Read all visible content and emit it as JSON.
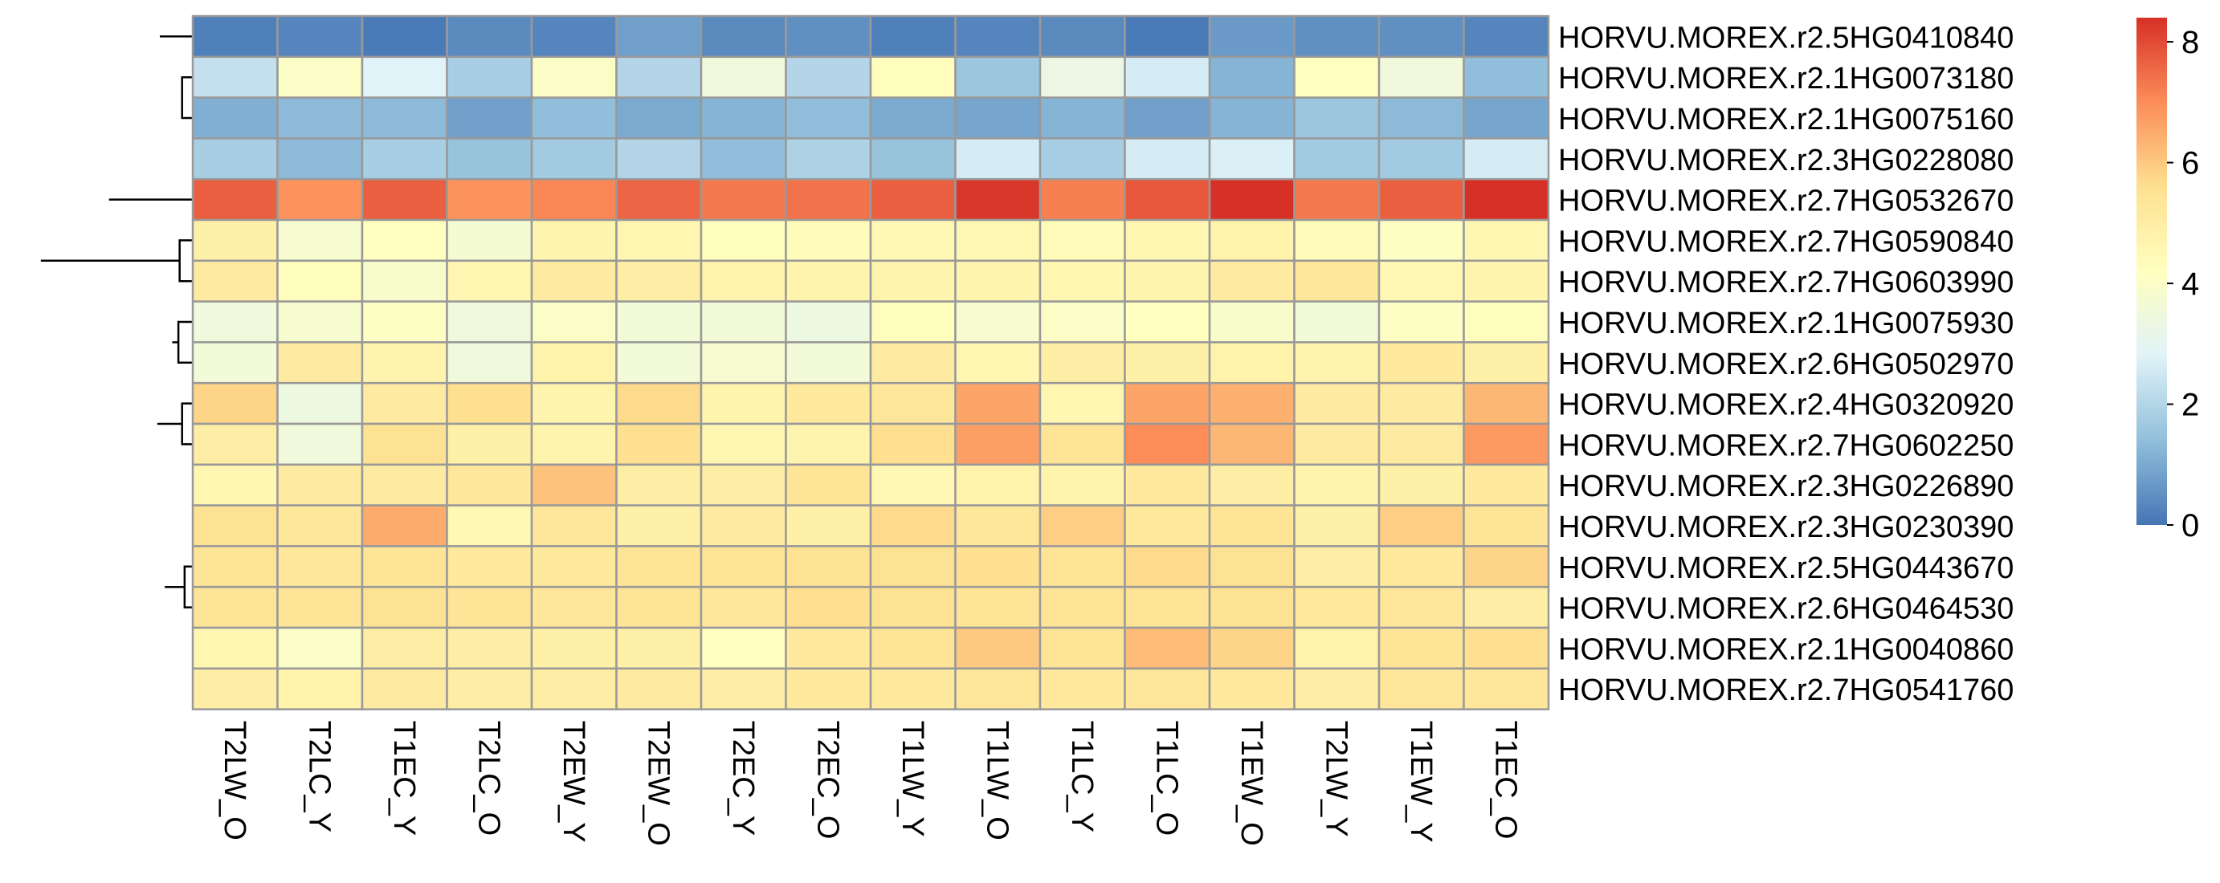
{
  "chart_data": {
    "type": "heatmap",
    "title": "",
    "rows": [
      "HORVU.MOREX.r2.5HG0410840",
      "HORVU.MOREX.r2.1HG0073180",
      "HORVU.MOREX.r2.1HG0075160",
      "HORVU.MOREX.r2.3HG0228080",
      "HORVU.MOREX.r2.7HG0532670",
      "HORVU.MOREX.r2.7HG0590840",
      "HORVU.MOREX.r2.7HG0603990",
      "HORVU.MOREX.r2.1HG0075930",
      "HORVU.MOREX.r2.6HG0502970",
      "HORVU.MOREX.r2.4HG0320920",
      "HORVU.MOREX.r2.7HG0602250",
      "HORVU.MOREX.r2.3HG0226890",
      "HORVU.MOREX.r2.3HG0230390",
      "HORVU.MOREX.r2.5HG0443670",
      "HORVU.MOREX.r2.6HG0464530",
      "HORVU.MOREX.r2.1HG0040860",
      "HORVU.MOREX.r2.7HG0541760"
    ],
    "columns": [
      "T2LW_O",
      "T2LC_Y",
      "T1EC_Y",
      "T2LC_O",
      "T2EW_Y",
      "T2EW_O",
      "T2EC_Y",
      "T2EC_O",
      "T1LW_Y",
      "T1LW_O",
      "T1LC_Y",
      "T1LC_O",
      "T1EW_O",
      "T2LW_Y",
      "T1EW_Y",
      "T1EC_O"
    ],
    "values": [
      [
        0.2,
        0.3,
        0.1,
        0.4,
        0.3,
        0.8,
        0.4,
        0.5,
        0.2,
        0.3,
        0.4,
        0.1,
        0.7,
        0.5,
        0.5,
        0.3
      ],
      [
        2.3,
        4.0,
        2.8,
        1.8,
        4.0,
        2.0,
        3.5,
        2.0,
        4.3,
        1.6,
        3.3,
        2.6,
        1.2,
        4.2,
        3.5,
        1.4
      ],
      [
        1.1,
        1.3,
        1.3,
        0.8,
        1.4,
        1.0,
        1.2,
        1.4,
        1.0,
        0.9,
        1.2,
        0.8,
        1.2,
        1.6,
        1.3,
        0.9
      ],
      [
        1.8,
        1.3,
        1.8,
        1.5,
        1.7,
        2.0,
        1.4,
        1.9,
        1.5,
        2.6,
        1.8,
        2.6,
        2.7,
        1.7,
        1.7,
        2.6
      ],
      [
        7.7,
        6.9,
        7.7,
        6.9,
        7.1,
        7.6,
        7.3,
        7.4,
        7.7,
        8.3,
        7.2,
        7.8,
        8.4,
        7.3,
        7.7,
        8.4
      ],
      [
        4.9,
        3.8,
        4.2,
        3.7,
        4.7,
        4.6,
        4.3,
        4.4,
        4.5,
        4.5,
        4.4,
        4.6,
        4.8,
        4.4,
        4.1,
        4.6
      ],
      [
        5.1,
        4.3,
        3.9,
        4.6,
        5.1,
        5.0,
        4.8,
        4.7,
        4.7,
        4.7,
        4.6,
        4.7,
        5.1,
        5.3,
        4.5,
        4.7
      ],
      [
        3.5,
        3.8,
        4.1,
        3.5,
        4.0,
        3.6,
        3.6,
        3.4,
        4.3,
        3.8,
        4.0,
        4.2,
        3.9,
        3.6,
        4.1,
        4.3
      ],
      [
        3.6,
        5.1,
        4.7,
        3.5,
        4.8,
        3.6,
        3.8,
        3.6,
        5.1,
        4.6,
        5.0,
        4.9,
        4.8,
        4.7,
        5.2,
        4.9
      ],
      [
        5.8,
        3.4,
        5.1,
        5.6,
        4.7,
        5.7,
        4.7,
        5.2,
        5.3,
        6.6,
        4.6,
        6.6,
        6.4,
        5.1,
        5.1,
        6.3
      ],
      [
        5.0,
        3.5,
        5.5,
        4.9,
        4.7,
        5.6,
        4.6,
        4.7,
        5.6,
        6.7,
        5.4,
        7.0,
        6.3,
        5.1,
        5.1,
        6.8
      ],
      [
        4.6,
        5.1,
        5.1,
        5.3,
        6.1,
        5.0,
        5.0,
        5.4,
        4.5,
        4.8,
        4.7,
        5.2,
        5.0,
        4.7,
        4.9,
        5.2
      ],
      [
        5.5,
        5.3,
        6.5,
        4.5,
        5.3,
        4.9,
        5.1,
        4.9,
        5.7,
        5.3,
        5.9,
        5.2,
        5.4,
        4.9,
        5.9,
        5.4
      ],
      [
        5.4,
        5.3,
        5.4,
        5.2,
        5.2,
        5.4,
        5.4,
        5.5,
        5.5,
        5.6,
        5.4,
        5.7,
        5.5,
        5.0,
        5.2,
        5.8
      ],
      [
        5.4,
        5.4,
        5.5,
        5.4,
        5.3,
        5.4,
        5.3,
        5.6,
        5.5,
        5.4,
        5.4,
        5.4,
        5.5,
        5.2,
        5.3,
        5.0
      ],
      [
        4.6,
        4.0,
        5.0,
        5.0,
        4.9,
        4.9,
        4.2,
        5.2,
        5.4,
        6.0,
        5.4,
        6.2,
        5.8,
        4.8,
        5.4,
        5.6
      ],
      [
        5.0,
        4.8,
        5.1,
        5.0,
        5.0,
        5.1,
        5.0,
        5.2,
        5.2,
        5.3,
        5.2,
        5.3,
        5.2,
        5.0,
        5.3,
        5.3
      ]
    ],
    "scale": {
      "min": 0,
      "max": 8.4,
      "ticks": [
        0,
        2,
        4,
        6,
        8
      ]
    },
    "colors": {
      "low": "#4575b4",
      "mid_low": "#91bfdb",
      "mid_light": "#e0f3f8",
      "mid": "#ffffbf",
      "mid_high": "#fee090",
      "high_warm": "#fc8d59",
      "high": "#d73027",
      "cell_border": "#999999",
      "dendrogram": "#000000"
    },
    "row_dendrogram": [
      [
        1,
        2
      ],
      [
        18,
        3
      ],
      [
        0,
        19
      ],
      [
        5,
        6
      ],
      [
        7,
        8
      ],
      [
        21,
        22
      ],
      [
        9,
        10
      ],
      [
        13,
        14
      ],
      [
        25,
        15
      ],
      [
        26,
        16
      ],
      [
        27,
        12
      ],
      [
        28,
        11
      ],
      [
        24,
        29
      ],
      [
        23,
        30
      ],
      [
        4,
        31
      ],
      [
        20,
        32
      ]
    ],
    "legend": {
      "position": "right"
    }
  }
}
